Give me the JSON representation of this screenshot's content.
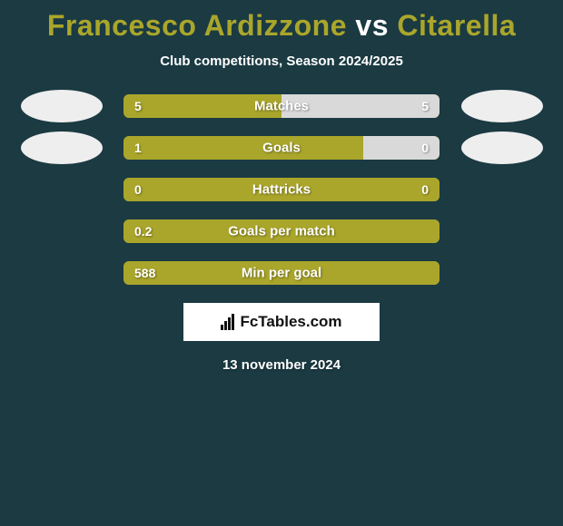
{
  "background_color": "#1b3a42",
  "title": {
    "player1": "Francesco Ardizzone",
    "vs": "vs",
    "player2": "Citarella",
    "player1_color": "#aaa62b",
    "vs_color": "#ffffff",
    "player2_color": "#aaa62b",
    "fontsize": 32
  },
  "subtitle": {
    "text": "Club competitions, Season 2024/2025",
    "color": "#ffffff",
    "fontsize": 15
  },
  "bar_style": {
    "left_color": "#aaa62b",
    "right_color": "#d9d9d9",
    "track_color": "#aaa62b",
    "text_color": "#ffffff",
    "height": 26,
    "radius": 6,
    "label_fontsize": 15,
    "value_fontsize": 14
  },
  "avatar": {
    "left_bg": "#eeeeee",
    "right_bg": "#eeeeee"
  },
  "stats": [
    {
      "label": "Matches",
      "left_val": "5",
      "right_val": "5",
      "left_pct": 50,
      "right_pct": 50,
      "show_avatars": true,
      "avatar_y": 0
    },
    {
      "label": "Goals",
      "left_val": "1",
      "right_val": "0",
      "left_pct": 76,
      "right_pct": 24,
      "show_avatars": true,
      "avatar_y": 1
    },
    {
      "label": "Hattricks",
      "left_val": "0",
      "right_val": "0",
      "left_pct": 100,
      "right_pct": 0,
      "show_avatars": false
    },
    {
      "label": "Goals per match",
      "left_val": "0.2",
      "right_val": "",
      "left_pct": 100,
      "right_pct": 0,
      "show_avatars": false
    },
    {
      "label": "Min per goal",
      "left_val": "588",
      "right_val": "",
      "left_pct": 100,
      "right_pct": 0,
      "show_avatars": false
    }
  ],
  "branding": {
    "text": "FcTables.com",
    "bg": "#ffffff",
    "color": "#111111",
    "fontsize": 17
  },
  "date": {
    "text": "13 november 2024",
    "color": "#ffffff",
    "fontsize": 15
  }
}
